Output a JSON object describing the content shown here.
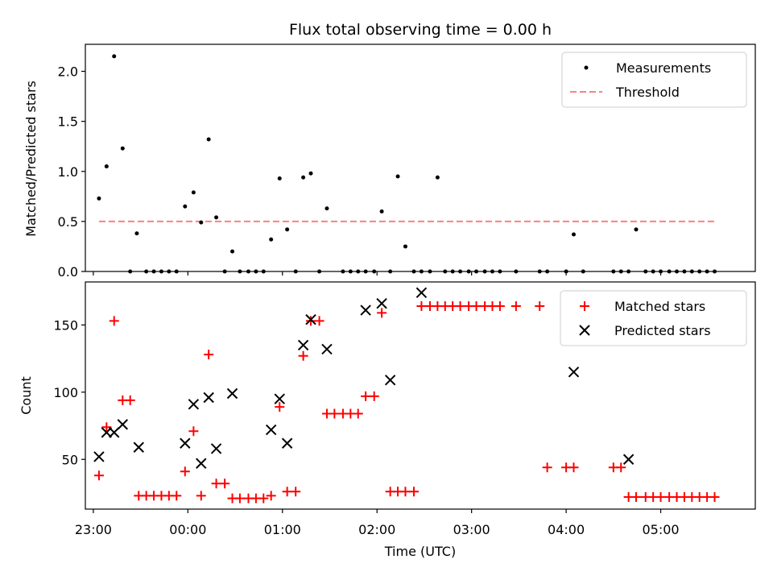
{
  "chart_data": {
    "title": "Flux total observing time = 0.00 h",
    "xlabel": "Time (UTC)",
    "xlim": [
      -0.0842,
      7.0
    ],
    "xticks": [
      {
        "value": 0,
        "label": "23:00"
      },
      {
        "value": 1,
        "label": "00:00"
      },
      {
        "value": 2,
        "label": "01:00"
      },
      {
        "value": 3,
        "label": "02:00"
      },
      {
        "value": 4,
        "label": "03:00"
      },
      {
        "value": 5,
        "label": "04:00"
      },
      {
        "value": 6,
        "label": "05:00"
      }
    ],
    "panels": [
      {
        "type": "scatter",
        "ylabel": "Matched/Predicted stars",
        "ylim": [
          0,
          2.27
        ],
        "yticks": [
          {
            "value": 0,
            "label": "0.0"
          },
          {
            "value": 0.5,
            "label": "0.5"
          },
          {
            "value": 1.0,
            "label": "1.0"
          },
          {
            "value": 1.5,
            "label": "1.5"
          },
          {
            "value": 2.0,
            "label": "2.0"
          }
        ],
        "legend": [
          "Measurements",
          "Threshold"
        ],
        "legend_position": "upper right",
        "threshold": {
          "name": "Threshold",
          "value": 0.5,
          "x_range": [
            0.06,
            6.58
          ],
          "color": "#ff7f7f"
        },
        "series": [
          {
            "name": "Measurements",
            "color": "#000000",
            "marker": "dot",
            "x": [
              0.06,
              0.14,
              0.22,
              0.31,
              0.39,
              0.46,
              0.56,
              0.64,
              0.72,
              0.8,
              0.88,
              0.97,
              1.06,
              1.14,
              1.22,
              1.3,
              1.39,
              1.47,
              1.55,
              1.64,
              1.72,
              1.8,
              1.88,
              1.97,
              2.05,
              2.14,
              2.22,
              2.3,
              2.39,
              2.47,
              2.64,
              2.72,
              2.8,
              2.88,
              2.97,
              3.05,
              3.14,
              3.22,
              3.3,
              3.39,
              3.47,
              3.56,
              3.64,
              3.72,
              3.8,
              3.88,
              3.97,
              4.05,
              4.14,
              4.22,
              4.3,
              4.47,
              4.72,
              4.8,
              5.0,
              5.08,
              5.18,
              5.5,
              5.58,
              5.66,
              5.74,
              5.84,
              5.92,
              6.0,
              6.09,
              6.17,
              6.25,
              6.33,
              6.41,
              6.49,
              6.57
            ],
            "y": [
              0.73,
              1.05,
              2.15,
              1.23,
              0.0,
              0.38,
              0.0,
              0.0,
              0.0,
              0.0,
              0.0,
              0.65,
              0.79,
              0.49,
              1.32,
              0.54,
              0.0,
              0.2,
              0.0,
              0.0,
              0.0,
              0.0,
              0.32,
              0.93,
              0.42,
              0.0,
              0.94,
              0.98,
              0.0,
              0.63,
              0.0,
              0.0,
              0.0,
              0.0,
              0.0,
              0.6,
              0.0,
              0.95,
              0.25,
              0.0,
              0.0,
              0.0,
              0.94,
              0.0,
              0.0,
              0.0,
              0.0,
              0.0,
              0.0,
              0.0,
              0.0,
              0.0,
              0.0,
              0.0,
              0.0,
              0.37,
              0.0,
              0.0,
              0.0,
              0.0,
              0.42,
              0.0,
              0.0,
              0.0,
              0.0,
              0.0,
              0.0,
              0.0,
              0.0,
              0.0,
              0.0
            ]
          }
        ]
      },
      {
        "type": "scatter",
        "ylabel": "Count",
        "ylim": [
          13,
          182
        ],
        "yticks": [
          {
            "value": 50,
            "label": "50"
          },
          {
            "value": 100,
            "label": "100"
          },
          {
            "value": 150,
            "label": "150"
          }
        ],
        "legend": [
          "Matched stars",
          "Predicted stars"
        ],
        "legend_position": "upper right",
        "series": [
          {
            "name": "Matched stars",
            "color": "#ff0000",
            "marker": "plus",
            "x": [
              0.06,
              0.14,
              0.22,
              0.31,
              0.39,
              0.48,
              0.56,
              0.64,
              0.72,
              0.8,
              0.88,
              0.97,
              1.06,
              1.14,
              1.22,
              1.3,
              1.39,
              1.47,
              1.55,
              1.64,
              1.72,
              1.8,
              1.88,
              1.97,
              2.05,
              2.14,
              2.22,
              2.3,
              2.39,
              2.47,
              2.55,
              2.64,
              2.72,
              2.8,
              2.88,
              2.97,
              3.05,
              3.14,
              3.22,
              3.3,
              3.39,
              3.47,
              3.56,
              3.64,
              3.72,
              3.8,
              3.88,
              3.97,
              4.05,
              4.14,
              4.22,
              4.3,
              4.47,
              4.72,
              4.8,
              5.0,
              5.08,
              5.5,
              5.58,
              5.66,
              5.74,
              5.84,
              5.92,
              6.0,
              6.09,
              6.17,
              6.25,
              6.33,
              6.41,
              6.49,
              6.57
            ],
            "y": [
              38,
              74,
              153,
              94,
              94,
              23,
              23,
              23,
              23,
              23,
              23,
              41,
              71,
              23,
              128,
              32,
              32,
              21,
              21,
              21,
              21,
              21,
              23,
              89,
              26,
              26,
              127,
              153,
              153,
              84,
              84,
              84,
              84,
              84,
              97,
              97,
              159,
              26,
              26,
              26,
              26,
              164,
              164,
              164,
              164,
              164,
              164,
              164,
              164,
              164,
              164,
              164,
              164,
              164,
              44,
              44,
              44,
              44,
              44,
              22,
              22,
              22,
              22,
              22,
              22,
              22,
              22,
              22,
              22,
              22,
              22
            ]
          },
          {
            "name": "Predicted stars",
            "color": "#000000",
            "marker": "x",
            "x": [
              0.06,
              0.14,
              0.22,
              0.31,
              0.48,
              0.97,
              1.06,
              1.14,
              1.22,
              1.3,
              1.47,
              1.88,
              1.97,
              2.05,
              2.22,
              2.3,
              2.47,
              2.88,
              3.05,
              3.14,
              3.47,
              5.08,
              5.66
            ],
            "y": [
              52,
              70,
              70,
              76,
              59,
              62,
              91,
              47,
              96,
              58,
              99,
              72,
              95,
              62,
              135,
              154,
              132,
              161,
              166,
              109,
              174,
              115,
              50
            ]
          }
        ]
      }
    ]
  }
}
